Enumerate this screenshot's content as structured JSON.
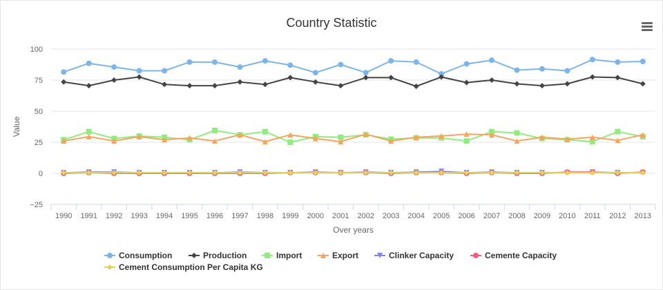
{
  "chart": {
    "title": "Country Statistic",
    "menu_icon": "hamburger-menu-icon"
  },
  "chart_data": {
    "type": "line",
    "title": "Country Statistic",
    "xlabel": "Over years",
    "ylabel": "Value",
    "categories": [
      "1990",
      "1991",
      "1992",
      "1993",
      "1994",
      "1995",
      "1996",
      "1997",
      "1998",
      "1999",
      "2000",
      "2001",
      "2002",
      "2003",
      "2004",
      "2005",
      "2006",
      "2007",
      "2008",
      "2009",
      "2010",
      "2011",
      "2012",
      "2013"
    ],
    "ylim": [
      -25,
      100
    ],
    "yticks": [
      -25,
      0,
      25,
      50,
      75,
      100
    ],
    "ytick_labels": [
      "−25",
      "0",
      "25",
      "50",
      "75",
      "100"
    ],
    "grid": true,
    "legend_position": "bottom",
    "series": [
      {
        "name": "Consumption",
        "color": "#7cb5ec",
        "marker": "circle",
        "values": [
          81.5,
          88.5,
          85.5,
          82.5,
          82.5,
          89.5,
          89.5,
          85.5,
          90.5,
          87.0,
          81.0,
          87.5,
          81.0,
          90.5,
          89.5,
          80.0,
          88.0,
          91.0,
          83.0,
          84.0,
          82.5,
          91.5,
          89.5,
          90.0
        ]
      },
      {
        "name": "Production",
        "color": "#434348",
        "marker": "diamond",
        "values": [
          73.5,
          70.5,
          75.0,
          77.5,
          71.5,
          70.5,
          70.5,
          73.5,
          71.5,
          77.0,
          73.5,
          70.5,
          77.0,
          77.0,
          70.0,
          77.5,
          73.0,
          75.0,
          72.0,
          70.5,
          72.0,
          77.5,
          77.0,
          72.0
        ]
      },
      {
        "name": "Import",
        "color": "#90ed7d",
        "marker": "square",
        "values": [
          27.0,
          33.5,
          28.0,
          30.0,
          29.0,
          27.0,
          34.5,
          31.0,
          33.5,
          25.0,
          29.5,
          29.0,
          31.0,
          27.5,
          28.5,
          28.5,
          26.0,
          33.5,
          32.5,
          28.0,
          27.0,
          25.5,
          33.5,
          29.5
        ]
      },
      {
        "name": "Export",
        "color": "#f7a35c",
        "marker": "triangle",
        "values": [
          26.0,
          29.5,
          26.0,
          29.5,
          27.0,
          28.5,
          26.0,
          31.0,
          25.5,
          31.0,
          28.0,
          25.5,
          31.5,
          26.0,
          29.0,
          30.0,
          31.5,
          31.0,
          26.0,
          29.0,
          27.5,
          29.0,
          26.5,
          31.0
        ]
      },
      {
        "name": "Clinker Capacity",
        "color": "#8085e9",
        "marker": "triangle-down",
        "values": [
          0.5,
          1.0,
          1.0,
          0.5,
          0.5,
          0.5,
          0.5,
          1.0,
          0.5,
          0.5,
          1.0,
          0.5,
          1.0,
          0.5,
          1.0,
          1.5,
          0.5,
          1.0,
          0.5,
          0.5,
          0.5,
          1.0,
          0.5,
          0.5
        ]
      },
      {
        "name": "Cemente Capacity",
        "color": "#f15c80",
        "marker": "circle",
        "values": [
          0.0,
          0.5,
          0.0,
          0.0,
          0.0,
          0.0,
          0.0,
          0.0,
          0.0,
          0.5,
          0.5,
          0.5,
          0.5,
          0.0,
          0.5,
          0.5,
          0.0,
          0.5,
          0.0,
          0.0,
          1.0,
          1.0,
          0.0,
          1.0
        ]
      },
      {
        "name": "Cement Consumption Per Capita KG",
        "color": "#e4d354",
        "marker": "diamond",
        "values": [
          0.5,
          0.5,
          0.5,
          0.5,
          0.5,
          0.5,
          0.5,
          0.5,
          0.5,
          0.5,
          0.5,
          0.5,
          0.5,
          0.5,
          0.5,
          0.5,
          0.5,
          0.5,
          0.5,
          0.5,
          0.5,
          0.5,
          0.5,
          0.5
        ]
      }
    ]
  }
}
